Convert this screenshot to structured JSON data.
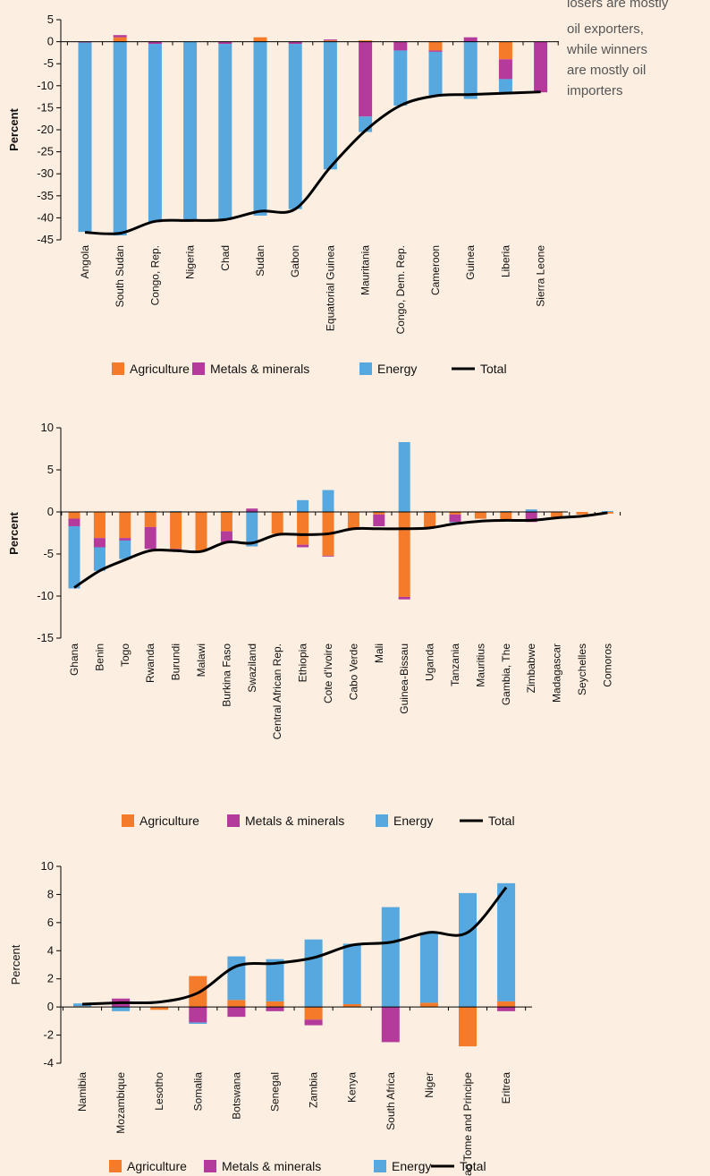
{
  "note": [
    "losers are mostly",
    "oil exporters,",
    "while winners",
    "are mostly oil",
    "importers"
  ],
  "chart_data": [
    {
      "type": "bar",
      "stacked": true,
      "ylabel": "Percent",
      "categories": [
        "Angola",
        "South Sudan",
        "Congo, Rep.",
        "Nigeria",
        "Chad",
        "Sudan",
        "Gabon",
        "Equatorial Guinea",
        "Mauritania",
        "Congo, Dem. Rep.",
        "Cameroon",
        "Guinea",
        "Liberia",
        "Sierra Leone"
      ],
      "ylim": [
        -45,
        5
      ],
      "yticks": [
        5,
        0,
        -5,
        -10,
        -15,
        -20,
        -25,
        -30,
        -35,
        -40,
        -45
      ],
      "series": [
        {
          "name": "Agriculture",
          "color": "#f47b2a",
          "values": [
            0,
            1,
            0,
            0,
            0,
            1,
            0,
            0.3,
            0.3,
            0,
            -2,
            0,
            -4,
            0
          ]
        },
        {
          "name": "Metals & minerals",
          "color": "#b43b9b",
          "values": [
            -0.2,
            0.5,
            -0.5,
            0,
            -0.5,
            0,
            -0.5,
            0.2,
            -17,
            -2,
            -0.3,
            1,
            -4.5,
            -11.5
          ]
        },
        {
          "name": "Energy",
          "color": "#56a8df",
          "values": [
            -43,
            -44,
            -40.5,
            -40.6,
            -40,
            -39.5,
            -37.5,
            -29,
            -3.5,
            -12.5,
            -10,
            -13,
            -3,
            0
          ]
        },
        {
          "name": "Total",
          "type": "line",
          "color": "#000000",
          "values": [
            -43.3,
            -43.5,
            -40.8,
            -40.6,
            -40.4,
            -38.5,
            -38,
            -28.5,
            -20.2,
            -14.5,
            -12.3,
            -12,
            -11.7,
            -11.4
          ]
        }
      ]
    },
    {
      "type": "bar",
      "stacked": true,
      "ylabel": "Percent",
      "categories": [
        "Ghana",
        "Benin",
        "Togo",
        "Rwanda",
        "Burundi",
        "Malawi",
        "Burkina Faso",
        "Swaziland",
        "Central African Rep.",
        "Ethiopia",
        "Cote d'Ivoire",
        "Cabo Verde",
        "Mali",
        "Guinea-Bissau",
        "Uganda",
        "Tanzania",
        "Mauritius",
        "Gambia, The",
        "Zimbabwe",
        "Madagascar",
        "Seychelles",
        "Comoros"
      ],
      "ylim": [
        -15,
        10
      ],
      "yticks": [
        10,
        5,
        0,
        -5,
        -10,
        -15
      ],
      "series": [
        {
          "name": "Agriculture",
          "color": "#f47b2a",
          "values": [
            -0.8,
            -3.1,
            -3.1,
            -1.8,
            -4.4,
            -4.6,
            -2.3,
            0,
            -2.6,
            -3.9,
            -5.2,
            -2.0,
            -0.3,
            -10.1,
            -1.9,
            -0.3,
            -0.8,
            -1.0,
            0,
            -0.6,
            -0.3,
            -0.2
          ]
        },
        {
          "name": "Metals & minerals",
          "color": "#b43b9b",
          "values": [
            -0.9,
            -1.1,
            -0.3,
            -2.6,
            -0.2,
            0,
            -1.3,
            0.4,
            0,
            -0.3,
            -0.1,
            0,
            -1.4,
            -0.3,
            0,
            -0.9,
            0,
            0,
            -1.2,
            0,
            0,
            0
          ]
        },
        {
          "name": "Energy",
          "color": "#56a8df",
          "values": [
            -7.4,
            -2.8,
            -2.2,
            0.1,
            0.1,
            -0.1,
            0.1,
            -4.1,
            0,
            1.4,
            2.6,
            0,
            0.1,
            8.3,
            0.1,
            -0.1,
            0,
            0.1,
            0.3,
            0,
            0,
            0.1
          ]
        },
        {
          "name": "Total",
          "type": "line",
          "color": "#000000",
          "values": [
            -9,
            -7,
            -5.7,
            -4.6,
            -4.6,
            -4.7,
            -3.6,
            -3.7,
            -2.7,
            -2.7,
            -2.6,
            -2.0,
            -2.0,
            -2.0,
            -1.9,
            -1.4,
            -1.1,
            -1.0,
            -1.0,
            -0.7,
            -0.5,
            -0.1
          ]
        }
      ]
    },
    {
      "type": "bar",
      "stacked": true,
      "ylabel": "Percent",
      "categories": [
        "Namibia",
        "Mozambique",
        "Lesotho",
        "Somalia",
        "Botswana",
        "Senegal",
        "Zambia",
        "Kenya",
        "South Africa",
        "Niger",
        "Sao Tome and Principe",
        "Eritrea"
      ],
      "ylim": [
        -4,
        10
      ],
      "yticks": [
        10,
        8,
        6,
        4,
        2,
        0,
        -2,
        -4
      ],
      "series": [
        {
          "name": "Agriculture",
          "color": "#f47b2a",
          "values": [
            0.05,
            0,
            -0.2,
            2.2,
            0.5,
            0.4,
            -0.9,
            0.2,
            0,
            0.3,
            -2.8,
            0.4
          ]
        },
        {
          "name": "Metals & minerals",
          "color": "#b43b9b",
          "values": [
            0,
            0.6,
            0,
            -1.1,
            -0.7,
            -0.3,
            -0.4,
            0,
            -2.5,
            0,
            0,
            -0.3
          ]
        },
        {
          "name": "Energy",
          "color": "#56a8df",
          "values": [
            0.2,
            -0.3,
            0,
            -0.1,
            3.1,
            3.0,
            4.8,
            4.3,
            7.1,
            5.0,
            8.1,
            8.4
          ]
        },
        {
          "name": "Total",
          "type": "line",
          "color": "#000000",
          "values": [
            0.2,
            0.3,
            0.35,
            1.0,
            2.9,
            3.1,
            3.5,
            4.4,
            4.6,
            5.3,
            5.3,
            8.5
          ]
        }
      ]
    }
  ]
}
